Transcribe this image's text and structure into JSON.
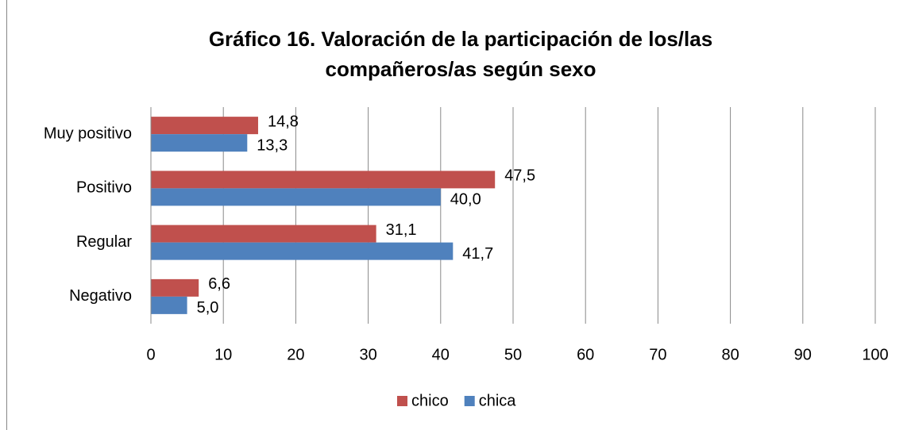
{
  "chart_data": {
    "type": "hbar",
    "title": "Gráfico 16. Valoración de la participación de los/las compañeros/as según sexo",
    "categories": [
      "Muy positivo",
      "Positivo",
      "Regular",
      "Negativo"
    ],
    "series": [
      {
        "name": "chico",
        "color": "#c0504d",
        "values": [
          14.8,
          47.5,
          31.1,
          6.6
        ],
        "value_labels": [
          "14,8",
          "47,5",
          "31,1",
          "6,6"
        ]
      },
      {
        "name": "chica",
        "color": "#4f81bd",
        "values": [
          13.3,
          40.0,
          41.7,
          5.0
        ],
        "value_labels": [
          "13,3",
          "40,0",
          "41,7",
          "5,0"
        ]
      }
    ],
    "xlim": [
      0,
      100
    ],
    "xticks": [
      0,
      10,
      20,
      30,
      40,
      50,
      60,
      70,
      80,
      90,
      100
    ],
    "grid": true,
    "legend": "bottom"
  }
}
